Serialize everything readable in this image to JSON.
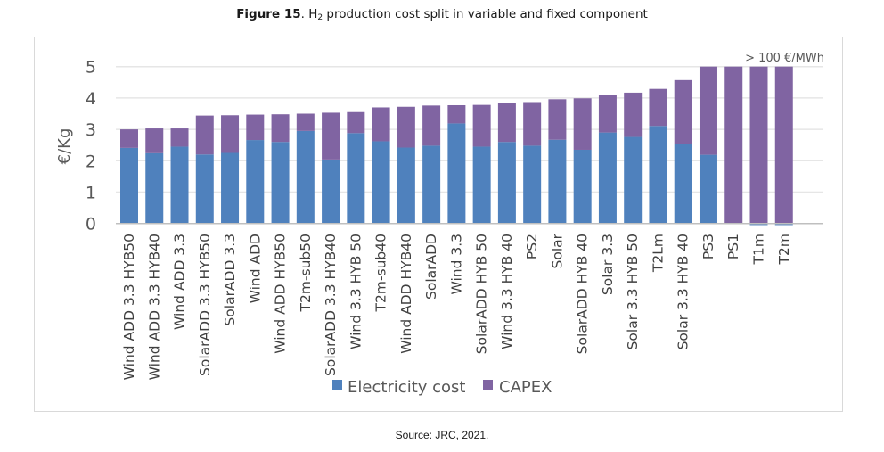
{
  "caption": {
    "figure_label": "Figure 15",
    "title_prefix": ". H",
    "title_sub": "2",
    "title_rest": " production cost split in variable and fixed component"
  },
  "source": "Source: JRC, 2021.",
  "colors": {
    "electricity": "#4F81BD",
    "capex": "#8064A2",
    "grid": "#e6e6e6",
    "axis": "#bfbfbf"
  },
  "chart_data": {
    "type": "bar",
    "stacked": true,
    "title": "H2 production cost split in variable and fixed component",
    "xlabel": "",
    "ylabel": "€/Kg",
    "ylim": [
      0,
      5
    ],
    "yticks": [
      0,
      1,
      2,
      3,
      4,
      5
    ],
    "grid": true,
    "legend_position": "bottom",
    "annotation": "> 100 €/MWh",
    "categories": [
      "Wind ADD 3.3 HYB50",
      "Wind ADD 3.3 HYB40",
      "Wind ADD 3.3",
      "SolarADD 3.3 HYB50",
      "SolarADD 3.3",
      "Wind ADD",
      "Wind ADD  HYB50",
      "T2m-sub50",
      "SolarADD 3.3 HYB40",
      "Wind 3.3 HYB 50",
      "T2m-sub40",
      "Wind ADD  HYB40",
      "SolarADD",
      "Wind 3.3",
      "SolarADD  HYB 50",
      "Wind 3.3 HYB 40",
      "PS2",
      "Solar",
      "SolarADD  HYB 40",
      "Solar 3.3",
      "Solar 3.3 HYB 50",
      "T2Lm",
      "Solar 3.3 HYB 40",
      "PS3",
      "PS1",
      "T1m",
      "T2m"
    ],
    "series": [
      {
        "name": "Electricity cost",
        "values": [
          2.41,
          2.24,
          2.45,
          2.2,
          2.25,
          2.66,
          2.6,
          2.95,
          2.04,
          2.88,
          2.62,
          2.42,
          2.48,
          3.19,
          2.45,
          2.6,
          2.48,
          2.67,
          2.35,
          2.9,
          2.76,
          3.11,
          2.54,
          2.19,
          0.0,
          -0.05,
          -0.05
        ]
      },
      {
        "name": "CAPEX",
        "values": [
          0.59,
          0.79,
          0.58,
          1.24,
          1.2,
          0.81,
          0.88,
          0.55,
          1.49,
          0.67,
          1.08,
          1.3,
          1.28,
          0.58,
          1.33,
          1.24,
          1.39,
          1.29,
          1.64,
          1.2,
          1.41,
          1.18,
          2.03,
          2.81,
          5.0,
          5.0,
          5.0
        ]
      }
    ]
  }
}
